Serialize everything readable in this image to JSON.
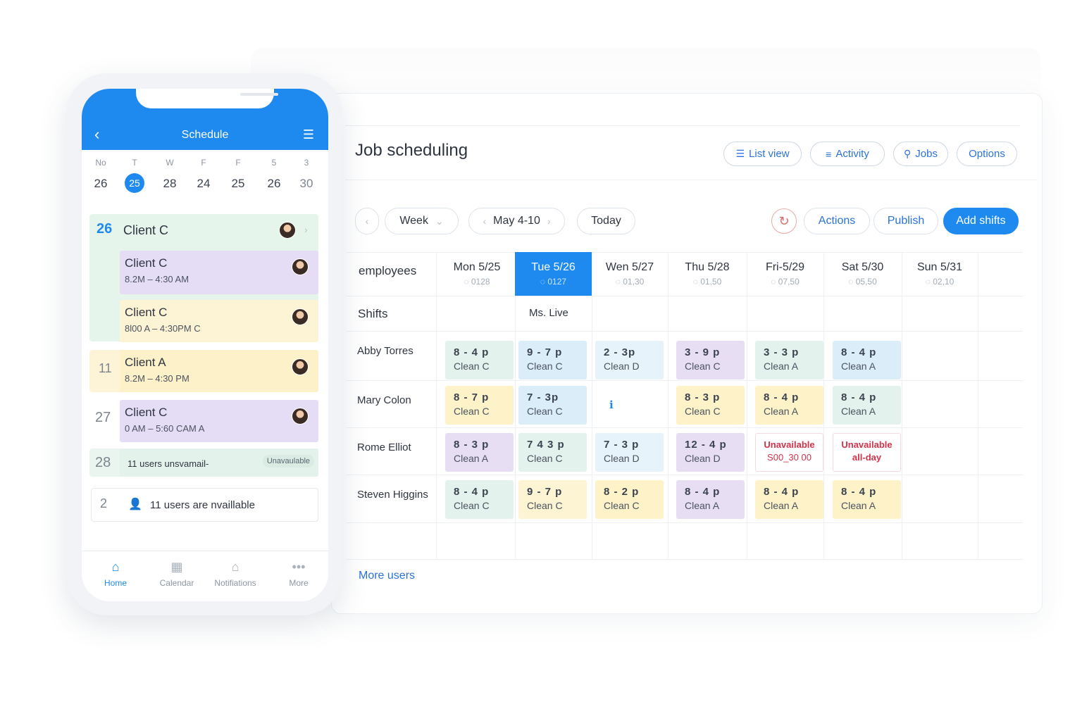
{
  "desktop": {
    "title": "Job scheduling",
    "header_buttons": [
      {
        "label": "List view",
        "icon": "list-icon"
      },
      {
        "label": "Activity",
        "icon": "activity-icon"
      },
      {
        "label": "Jobs",
        "icon": "jobs-icon"
      },
      {
        "label": "Options",
        "icon": ""
      }
    ],
    "toolbar": {
      "view": "Week",
      "range": "May 4-10",
      "today": "Today",
      "actions": "Actions",
      "publish": "Publish",
      "add_shifts": "Add shifts"
    },
    "employees_label": "employees",
    "shifts_label": "Shifts",
    "shift_note": "Ms. Live",
    "days": [
      {
        "day": "Mon 5/25",
        "sub": "0128"
      },
      {
        "day": "Tue 5/26",
        "sub": "0127"
      },
      {
        "day": "Wen 5/27",
        "sub": "01,30"
      },
      {
        "day": "Thu 5/28",
        "sub": "01,50"
      },
      {
        "day": "Fri-5/29",
        "sub": "07,50"
      },
      {
        "day": "Sat 5/30",
        "sub": "05,50"
      },
      {
        "day": "Sun 5/31",
        "sub": "02,10"
      }
    ],
    "rows": [
      {
        "name": "Abby Torres",
        "cells": [
          {
            "time": "8 - 4 p",
            "client": "Clean C",
            "color": "#e3f2ec"
          },
          {
            "time": "9 - 7 p",
            "client": "Clean C",
            "color": "#dcedfa"
          },
          {
            "time": "2 - 3p",
            "client": "Clean D",
            "color": "#e6f3fb"
          },
          {
            "time": "3 - 9 p",
            "client": "Clean C",
            "color": "#e7def3"
          },
          {
            "time": "3 - 3 p",
            "client": "Clean A",
            "color": "#e3f2ec"
          },
          {
            "time": "8 - 4 p",
            "client": "Clean A",
            "color": "#dcedfa"
          }
        ]
      },
      {
        "name": "Mary Colon",
        "cells": [
          {
            "time": "8 - 7 p",
            "client": "Clean C",
            "color": "#fdf2c8"
          },
          {
            "time": "7 - 3p",
            "client": "Clean C",
            "color": "#dcedfa"
          },
          {
            "time": "",
            "client": "",
            "color": ""
          },
          {
            "time": "8 - 3 p",
            "client": "Clean C",
            "color": "#fdf2c8"
          },
          {
            "time": "8 - 4 p",
            "client": "Clean A",
            "color": "#fdf2c8"
          },
          {
            "time": "8 - 4 p",
            "client": "Clean A",
            "color": "#e3f2ec"
          }
        ]
      },
      {
        "name": "Rome Elliot",
        "cells": [
          {
            "time": "8 - 3 p",
            "client": "Clean A",
            "color": "#e7def3"
          },
          {
            "time": "7 4 3 p",
            "client": "Clean C",
            "color": "#e3f2ec"
          },
          {
            "time": "7 - 3 p",
            "client": "Clean D",
            "color": "#e6f3fb"
          },
          {
            "time": "12 - 4 p",
            "client": "Clean D",
            "color": "#e7def3"
          },
          {
            "time": "Unavailable",
            "client": "S00_30 00",
            "color": "unavailable"
          },
          {
            "time": "Unavailable",
            "client": "all-day",
            "color": "unavailable"
          }
        ]
      },
      {
        "name": "Steven Higgins",
        "cells": [
          {
            "time": "8 - 4 p",
            "client": "Clean C",
            "color": "#e3f2ec"
          },
          {
            "time": "9 - 7 p",
            "client": "Clean C",
            "color": "#fdf4d3"
          },
          {
            "time": "8 - 2 p",
            "client": "Clean C",
            "color": "#fdf2c8"
          },
          {
            "time": "8 - 4 p",
            "client": "Clean A",
            "color": "#e7def3"
          },
          {
            "time": "8 - 4 p",
            "client": "Clean A",
            "color": "#fdf2c8"
          },
          {
            "time": "8 - 4 p",
            "client": "Clean A",
            "color": "#fdf2c8"
          }
        ]
      }
    ],
    "more_users": "More users"
  },
  "phone": {
    "title": "Schedule",
    "week": [
      {
        "label": "No",
        "num": "26"
      },
      {
        "label": "T",
        "num": "25"
      },
      {
        "label": "W",
        "num": "28"
      },
      {
        "label": "F",
        "num": "24"
      },
      {
        "label": "F",
        "num": "25"
      },
      {
        "label": "5",
        "num": "26"
      },
      {
        "label": "3",
        "num": "30"
      }
    ],
    "entries": {
      "first_day": "26",
      "first_title": "Client C",
      "card1_title": "Client C",
      "card1_time": "8.2M – 4:30 AM",
      "card2_title": "Client C",
      "card2_time": "8l00 A – 4:30PM C",
      "day2": "11",
      "card3_title": "Client A",
      "card3_time": "8.2M – 4:30 PM",
      "day3": "27",
      "card4_title": "Client C",
      "card4_time": "0 AM – 5:60 CAM A",
      "day4": "28",
      "card5_text": "11 users unsvamail-",
      "card5_badge": "Unavaulable",
      "day5": "2",
      "card6_text": "11 users are nvaillable"
    },
    "tabs": [
      {
        "label": "Home",
        "icon": "home-icon"
      },
      {
        "label": "Calendar",
        "icon": "calendar-icon"
      },
      {
        "label": "Notifiations",
        "icon": "notifications-icon"
      },
      {
        "label": "More",
        "icon": "more-icon"
      }
    ]
  }
}
